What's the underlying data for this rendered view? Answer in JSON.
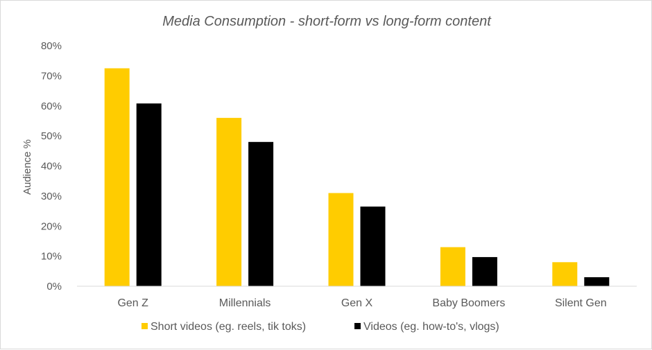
{
  "chart_data": {
    "type": "bar",
    "title": "Media Consumption - short-form vs long-form content",
    "xlabel": "",
    "ylabel": "Audience %",
    "ylim": [
      0,
      80
    ],
    "yticks": [
      "0%",
      "10%",
      "20%",
      "30%",
      "40%",
      "50%",
      "60%",
      "70%",
      "80%"
    ],
    "grid": false,
    "legend_position": "bottom",
    "categories": [
      "Gen Z",
      "Millennials",
      "Gen X",
      "Baby Boomers",
      "Silent Gen"
    ],
    "series": [
      {
        "name": "Short videos (eg. reels, tik toks)",
        "color": "#FFCC00",
        "values": [
          72.5,
          56,
          31,
          13,
          8
        ]
      },
      {
        "name": "Videos (eg. how-to's, vlogs)",
        "color": "#000000",
        "values": [
          60.8,
          48,
          26.5,
          9.7,
          3
        ]
      }
    ]
  }
}
